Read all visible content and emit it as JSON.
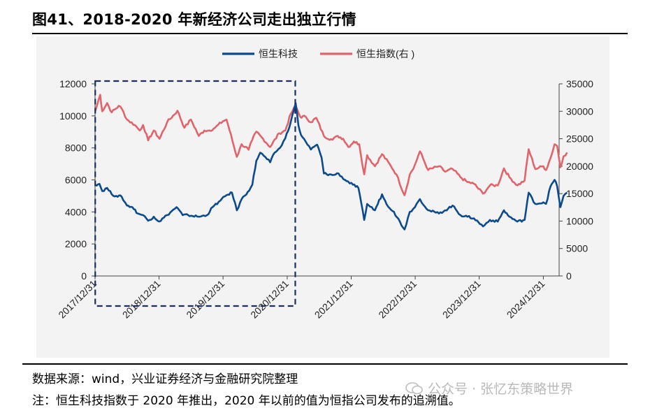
{
  "title": "图41、2018-2020 年新经济公司走出独立行情",
  "footer": {
    "source": "数据来源：wind，兴业证券经济与金融研究院整理",
    "note": "注：恒生科技指数于 2020 年推出，2020 年以前的值为恒指公司发布的追溯值。",
    "watermark": "公众号 · 张忆东策略世界"
  },
  "chart_data": {
    "type": "line",
    "title": "",
    "x_tick_labels": [
      "2017/12/31",
      "2018/12/31",
      "2019/12/31",
      "2020/12/31",
      "2021/12/31",
      "2022/12/31",
      "2023/12/31",
      "2024/12/31"
    ],
    "x_range": [
      "2017-12-31",
      "2025-03-31"
    ],
    "y_left": {
      "range": [
        0,
        12000
      ],
      "ticks": [
        0,
        2000,
        4000,
        6000,
        8000,
        10000,
        12000
      ]
    },
    "y_right": {
      "range": [
        0,
        35000
      ],
      "ticks": [
        0,
        5000,
        10000,
        15000,
        20000,
        25000,
        30000,
        35000
      ]
    },
    "legend_position": "top-center",
    "highlight_box": {
      "from": "2018-01-01",
      "to": "2021-02-15",
      "style": "dashed",
      "color": "#1a2f5e"
    },
    "series": [
      {
        "name": "恒生科技",
        "axis": "left",
        "color": "#0b4a8c",
        "points": [
          [
            "2018-01-01",
            5700
          ],
          [
            "2018-01-25",
            5750
          ],
          [
            "2018-02-10",
            5300
          ],
          [
            "2018-03-10",
            5500
          ],
          [
            "2018-04-05",
            5100
          ],
          [
            "2018-05-01",
            5000
          ],
          [
            "2018-06-01",
            4950
          ],
          [
            "2018-07-01",
            4400
          ],
          [
            "2018-08-01",
            4300
          ],
          [
            "2018-09-01",
            3900
          ],
          [
            "2018-10-01",
            3800
          ],
          [
            "2018-10-30",
            3450
          ],
          [
            "2018-12-01",
            3700
          ],
          [
            "2019-01-01",
            3400
          ],
          [
            "2019-02-15",
            3800
          ],
          [
            "2019-04-10",
            4300
          ],
          [
            "2019-05-15",
            3800
          ],
          [
            "2019-06-15",
            3800
          ],
          [
            "2019-08-15",
            3700
          ],
          [
            "2019-10-01",
            3800
          ],
          [
            "2019-11-01",
            4300
          ],
          [
            "2019-12-15",
            4700
          ],
          [
            "2020-01-20",
            5050
          ],
          [
            "2020-02-20",
            5200
          ],
          [
            "2020-03-19",
            4100
          ],
          [
            "2020-04-15",
            4800
          ],
          [
            "2020-05-20",
            5250
          ],
          [
            "2020-06-15",
            5700
          ],
          [
            "2020-07-08",
            7200
          ],
          [
            "2020-07-30",
            7700
          ],
          [
            "2020-08-20",
            7500
          ],
          [
            "2020-09-25",
            7100
          ],
          [
            "2020-10-20",
            7700
          ],
          [
            "2020-11-20",
            8000
          ],
          [
            "2020-12-20",
            8600
          ],
          [
            "2021-01-20",
            9600
          ],
          [
            "2021-02-17",
            10800
          ],
          [
            "2021-03-05",
            9400
          ],
          [
            "2021-03-20",
            8800
          ],
          [
            "2021-04-15",
            8400
          ],
          [
            "2021-05-15",
            7900
          ],
          [
            "2021-06-20",
            8200
          ],
          [
            "2021-07-15",
            7400
          ],
          [
            "2021-07-28",
            6400
          ],
          [
            "2021-09-15",
            6300
          ],
          [
            "2021-10-20",
            6400
          ],
          [
            "2021-11-25",
            6000
          ],
          [
            "2022-01-10",
            5700
          ],
          [
            "2022-02-10",
            5500
          ],
          [
            "2022-03-15",
            3500
          ],
          [
            "2022-04-01",
            4500
          ],
          [
            "2022-05-15",
            4100
          ],
          [
            "2022-06-25",
            5100
          ],
          [
            "2022-07-20",
            4500
          ],
          [
            "2022-09-01",
            4000
          ],
          [
            "2022-10-31",
            2900
          ],
          [
            "2022-11-30",
            4000
          ],
          [
            "2022-12-20",
            4200
          ],
          [
            "2023-01-27",
            4800
          ],
          [
            "2023-03-15",
            4100
          ],
          [
            "2023-05-15",
            3900
          ],
          [
            "2023-06-20",
            4100
          ],
          [
            "2023-08-01",
            4400
          ],
          [
            "2023-09-15",
            3800
          ],
          [
            "2023-10-25",
            3700
          ],
          [
            "2023-12-01",
            3600
          ],
          [
            "2024-01-22",
            3100
          ],
          [
            "2024-03-01",
            3500
          ],
          [
            "2024-04-15",
            3400
          ],
          [
            "2024-05-20",
            4100
          ],
          [
            "2024-06-20",
            3700
          ],
          [
            "2024-08-05",
            3400
          ],
          [
            "2024-09-15",
            3500
          ],
          [
            "2024-10-08",
            5200
          ],
          [
            "2024-11-15",
            4500
          ],
          [
            "2024-12-31",
            4600
          ],
          [
            "2025-01-15",
            4500
          ],
          [
            "2025-02-10",
            5600
          ],
          [
            "2025-03-05",
            6000
          ],
          [
            "2025-03-20",
            5600
          ],
          [
            "2025-04-07",
            4300
          ],
          [
            "2025-04-25",
            5000
          ],
          [
            "2025-05-15",
            5200
          ]
        ]
      },
      {
        "name": "恒生指数(右 )",
        "axis": "right",
        "color": "#e0646a",
        "points": [
          [
            "2018-01-01",
            30000
          ],
          [
            "2018-01-29",
            33000
          ],
          [
            "2018-02-10",
            30000
          ],
          [
            "2018-03-10",
            31500
          ],
          [
            "2018-04-05",
            29800
          ],
          [
            "2018-05-15",
            31000
          ],
          [
            "2018-06-01",
            30500
          ],
          [
            "2018-07-01",
            28500
          ],
          [
            "2018-08-15",
            27500
          ],
          [
            "2018-09-12",
            26500
          ],
          [
            "2018-10-01",
            27500
          ],
          [
            "2018-10-30",
            24700
          ],
          [
            "2018-12-01",
            26500
          ],
          [
            "2019-01-03",
            25000
          ],
          [
            "2019-02-15",
            28000
          ],
          [
            "2019-04-15",
            30100
          ],
          [
            "2019-05-25",
            27000
          ],
          [
            "2019-07-01",
            28500
          ],
          [
            "2019-08-15",
            25500
          ],
          [
            "2019-09-15",
            26500
          ],
          [
            "2019-10-15",
            26500
          ],
          [
            "2019-11-15",
            27000
          ],
          [
            "2019-12-31",
            28200
          ],
          [
            "2020-01-20",
            28500
          ],
          [
            "2020-03-19",
            21700
          ],
          [
            "2020-04-15",
            24000
          ],
          [
            "2020-05-25",
            23000
          ],
          [
            "2020-06-15",
            24800
          ],
          [
            "2020-07-08",
            26300
          ],
          [
            "2020-08-15",
            25000
          ],
          [
            "2020-09-25",
            23500
          ],
          [
            "2020-11-15",
            26000
          ],
          [
            "2020-12-20",
            26500
          ],
          [
            "2021-01-20",
            29500
          ],
          [
            "2021-02-17",
            31000
          ],
          [
            "2021-03-15",
            29000
          ],
          [
            "2021-04-15",
            29000
          ],
          [
            "2021-05-15",
            28000
          ],
          [
            "2021-06-15",
            28800
          ],
          [
            "2021-07-28",
            25500
          ],
          [
            "2021-09-15",
            24800
          ],
          [
            "2021-10-15",
            25500
          ],
          [
            "2021-11-15",
            25000
          ],
          [
            "2021-12-15",
            23500
          ],
          [
            "2022-01-15",
            24500
          ],
          [
            "2022-02-15",
            24000
          ],
          [
            "2022-03-15",
            18500
          ],
          [
            "2022-04-01",
            22000
          ],
          [
            "2022-05-15",
            20000
          ],
          [
            "2022-06-25",
            22200
          ],
          [
            "2022-08-15",
            20000
          ],
          [
            "2022-09-15",
            18500
          ],
          [
            "2022-10-31",
            14700
          ],
          [
            "2022-11-30",
            18500
          ],
          [
            "2022-12-20",
            19500
          ],
          [
            "2023-01-27",
            22700
          ],
          [
            "2023-03-15",
            19300
          ],
          [
            "2023-05-15",
            20000
          ],
          [
            "2023-06-20",
            19000
          ],
          [
            "2023-08-01",
            19500
          ],
          [
            "2023-09-15",
            18000
          ],
          [
            "2023-10-25",
            17100
          ],
          [
            "2023-12-01",
            16800
          ],
          [
            "2024-01-22",
            15000
          ],
          [
            "2024-03-01",
            16500
          ],
          [
            "2024-04-15",
            16500
          ],
          [
            "2024-05-20",
            19600
          ],
          [
            "2024-06-20",
            18000
          ],
          [
            "2024-08-05",
            16500
          ],
          [
            "2024-09-15",
            17400
          ],
          [
            "2024-10-08",
            23100
          ],
          [
            "2024-11-15",
            19500
          ],
          [
            "2024-12-31",
            20000
          ],
          [
            "2025-01-15",
            19300
          ],
          [
            "2025-02-10",
            21500
          ],
          [
            "2025-03-05",
            24000
          ],
          [
            "2025-03-20",
            23700
          ],
          [
            "2025-04-07",
            19800
          ],
          [
            "2025-04-25",
            21800
          ],
          [
            "2025-05-15",
            22500
          ]
        ]
      }
    ]
  }
}
